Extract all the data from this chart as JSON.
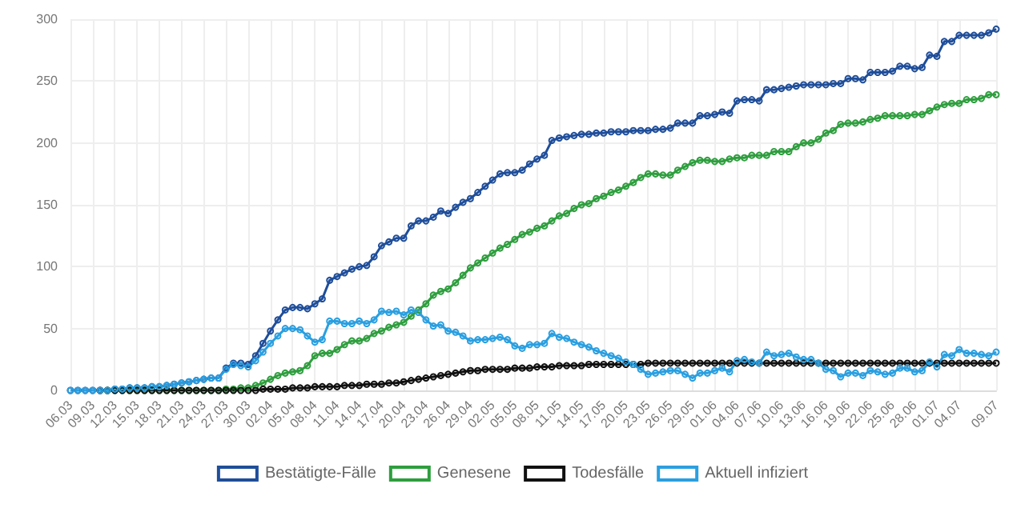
{
  "chart_data": {
    "type": "line",
    "categories": [
      "06.03",
      null,
      null,
      "09.03",
      null,
      null,
      "12.03",
      null,
      null,
      "15.03",
      null,
      null,
      "18.03",
      null,
      null,
      "21.03",
      null,
      null,
      "24.03",
      null,
      null,
      "27.03",
      null,
      null,
      "30.03",
      null,
      null,
      "02.04",
      null,
      null,
      "05.04",
      null,
      null,
      "08.04",
      null,
      null,
      "11.04",
      null,
      null,
      "14.04",
      null,
      null,
      "17.04",
      null,
      null,
      "20.04",
      null,
      null,
      "23.04",
      null,
      null,
      "26.04",
      null,
      null,
      "29.04",
      null,
      null,
      "02.05",
      null,
      null,
      "05.05",
      null,
      null,
      "08.05",
      null,
      null,
      "11.05",
      null,
      null,
      "14.05",
      null,
      null,
      "17.05",
      null,
      null,
      "20.05",
      null,
      null,
      "23.05",
      null,
      null,
      "26.05",
      null,
      null,
      "29.05",
      null,
      null,
      "01.06",
      null,
      null,
      "04.06",
      null,
      null,
      "07.06",
      null,
      null,
      "10.06",
      null,
      null,
      "13.06",
      null,
      null,
      "16.06",
      null,
      null,
      "19.06",
      null,
      null,
      "22.06",
      null,
      null,
      "25.06",
      null,
      null,
      "28.06",
      null,
      null,
      "01.07",
      null,
      null,
      "04.07",
      null,
      null,
      null,
      null,
      "09.07"
    ],
    "series": [
      {
        "name": "Bestätigte-Fälle",
        "color": "#1f4e9a",
        "values": [
          0,
          0,
          0,
          0,
          0,
          0,
          1,
          1,
          2,
          2,
          2,
          3,
          3,
          4,
          5,
          6,
          7,
          8,
          9,
          10,
          10,
          18,
          22,
          22,
          21,
          28,
          38,
          48,
          57,
          65,
          67,
          67,
          66,
          70,
          74,
          89,
          92,
          95,
          98,
          100,
          101,
          108,
          117,
          120,
          123,
          123,
          133,
          137,
          137,
          140,
          145,
          143,
          148,
          152,
          155,
          160,
          165,
          170,
          175,
          176,
          176,
          178,
          183,
          187,
          190,
          202,
          204,
          205,
          206,
          207,
          207,
          208,
          208,
          209,
          209,
          209,
          210,
          210,
          210,
          211,
          211,
          212,
          216,
          216,
          216,
          222,
          222,
          223,
          225,
          224,
          234,
          235,
          235,
          234,
          243,
          243,
          244,
          245,
          246,
          247,
          247,
          247,
          247,
          248,
          248,
          252,
          252,
          251,
          257,
          257,
          257,
          258,
          262,
          262,
          260,
          261,
          271,
          270,
          282,
          282,
          287,
          287,
          287,
          287,
          289,
          292
        ]
      },
      {
        "name": "Genesene",
        "color": "#2e9e3e",
        "values": [
          null,
          null,
          null,
          null,
          null,
          0,
          0,
          0,
          0,
          0,
          0,
          0,
          0,
          0,
          0,
          0,
          0,
          0,
          0,
          0,
          0,
          1,
          1,
          2,
          2,
          4,
          6,
          9,
          12,
          14,
          15,
          16,
          20,
          28,
          30,
          30,
          33,
          37,
          40,
          40,
          42,
          46,
          48,
          51,
          53,
          55,
          60,
          65,
          70,
          77,
          80,
          82,
          87,
          93,
          99,
          103,
          107,
          111,
          115,
          118,
          122,
          126,
          128,
          131,
          133,
          137,
          141,
          143,
          147,
          150,
          151,
          155,
          157,
          160,
          162,
          165,
          168,
          172,
          175,
          175,
          174,
          174,
          178,
          181,
          184,
          186,
          186,
          185,
          185,
          187,
          188,
          188,
          190,
          190,
          190,
          193,
          193,
          193,
          197,
          200,
          200,
          203,
          208,
          210,
          215,
          216,
          216,
          217,
          219,
          220,
          222,
          222,
          222,
          222,
          223,
          223,
          226,
          229,
          231,
          232,
          232,
          235,
          235,
          236,
          239,
          239
        ]
      },
      {
        "name": "Todesfälle",
        "color": "#111111",
        "values": [
          null,
          null,
          null,
          null,
          0,
          0,
          0,
          0,
          0,
          0,
          0,
          0,
          0,
          0,
          0,
          0,
          0,
          0,
          0,
          0,
          0,
          0,
          0,
          0,
          0,
          0,
          1,
          1,
          1,
          1,
          2,
          2,
          2,
          3,
          3,
          3,
          3,
          4,
          4,
          4,
          5,
          5,
          5,
          6,
          6,
          7,
          8,
          9,
          10,
          11,
          12,
          13,
          14,
          15,
          16,
          16,
          17,
          17,
          17,
          17,
          18,
          18,
          18,
          19,
          19,
          19,
          20,
          20,
          20,
          20,
          21,
          21,
          21,
          21,
          21,
          21,
          21,
          21,
          22,
          22,
          22,
          22,
          22,
          22,
          22,
          22,
          22,
          22,
          22,
          22,
          22,
          22,
          22,
          22,
          22,
          22,
          22,
          22,
          22,
          22,
          22,
          22,
          22,
          22,
          22,
          22,
          22,
          22,
          22,
          22,
          22,
          22,
          22,
          22,
          22,
          22,
          22,
          22,
          22,
          22,
          22,
          22,
          22,
          22,
          22,
          22
        ]
      },
      {
        "name": "Aktuell infiziert",
        "color": "#2a9fe0",
        "values": [
          0,
          0,
          0,
          0,
          0,
          0,
          1,
          1,
          2,
          2,
          2,
          3,
          3,
          4,
          5,
          6,
          7,
          8,
          9,
          10,
          10,
          17,
          21,
          20,
          19,
          24,
          31,
          38,
          44,
          50,
          50,
          49,
          44,
          39,
          41,
          56,
          56,
          54,
          54,
          56,
          54,
          57,
          64,
          63,
          64,
          61,
          65,
          63,
          57,
          52,
          53,
          48,
          47,
          44,
          40,
          41,
          41,
          42,
          43,
          41,
          36,
          34,
          37,
          37,
          38,
          46,
          43,
          42,
          39,
          37,
          35,
          32,
          30,
          28,
          26,
          23,
          21,
          17,
          13,
          14,
          15,
          16,
          16,
          13,
          10,
          14,
          14,
          16,
          18,
          15,
          24,
          25,
          23,
          22,
          31,
          28,
          29,
          30,
          27,
          25,
          25,
          22,
          17,
          16,
          11,
          14,
          14,
          12,
          16,
          15,
          13,
          14,
          18,
          18,
          15,
          16,
          23,
          19,
          29,
          28,
          33,
          30,
          30,
          29,
          28,
          31
        ]
      }
    ],
    "ylim": [
      0,
      300
    ],
    "yticks": [
      0,
      50,
      100,
      150,
      200,
      250,
      300
    ],
    "grid": true,
    "legend": "bottom",
    "marker": "circle",
    "line_style": "solid"
  }
}
